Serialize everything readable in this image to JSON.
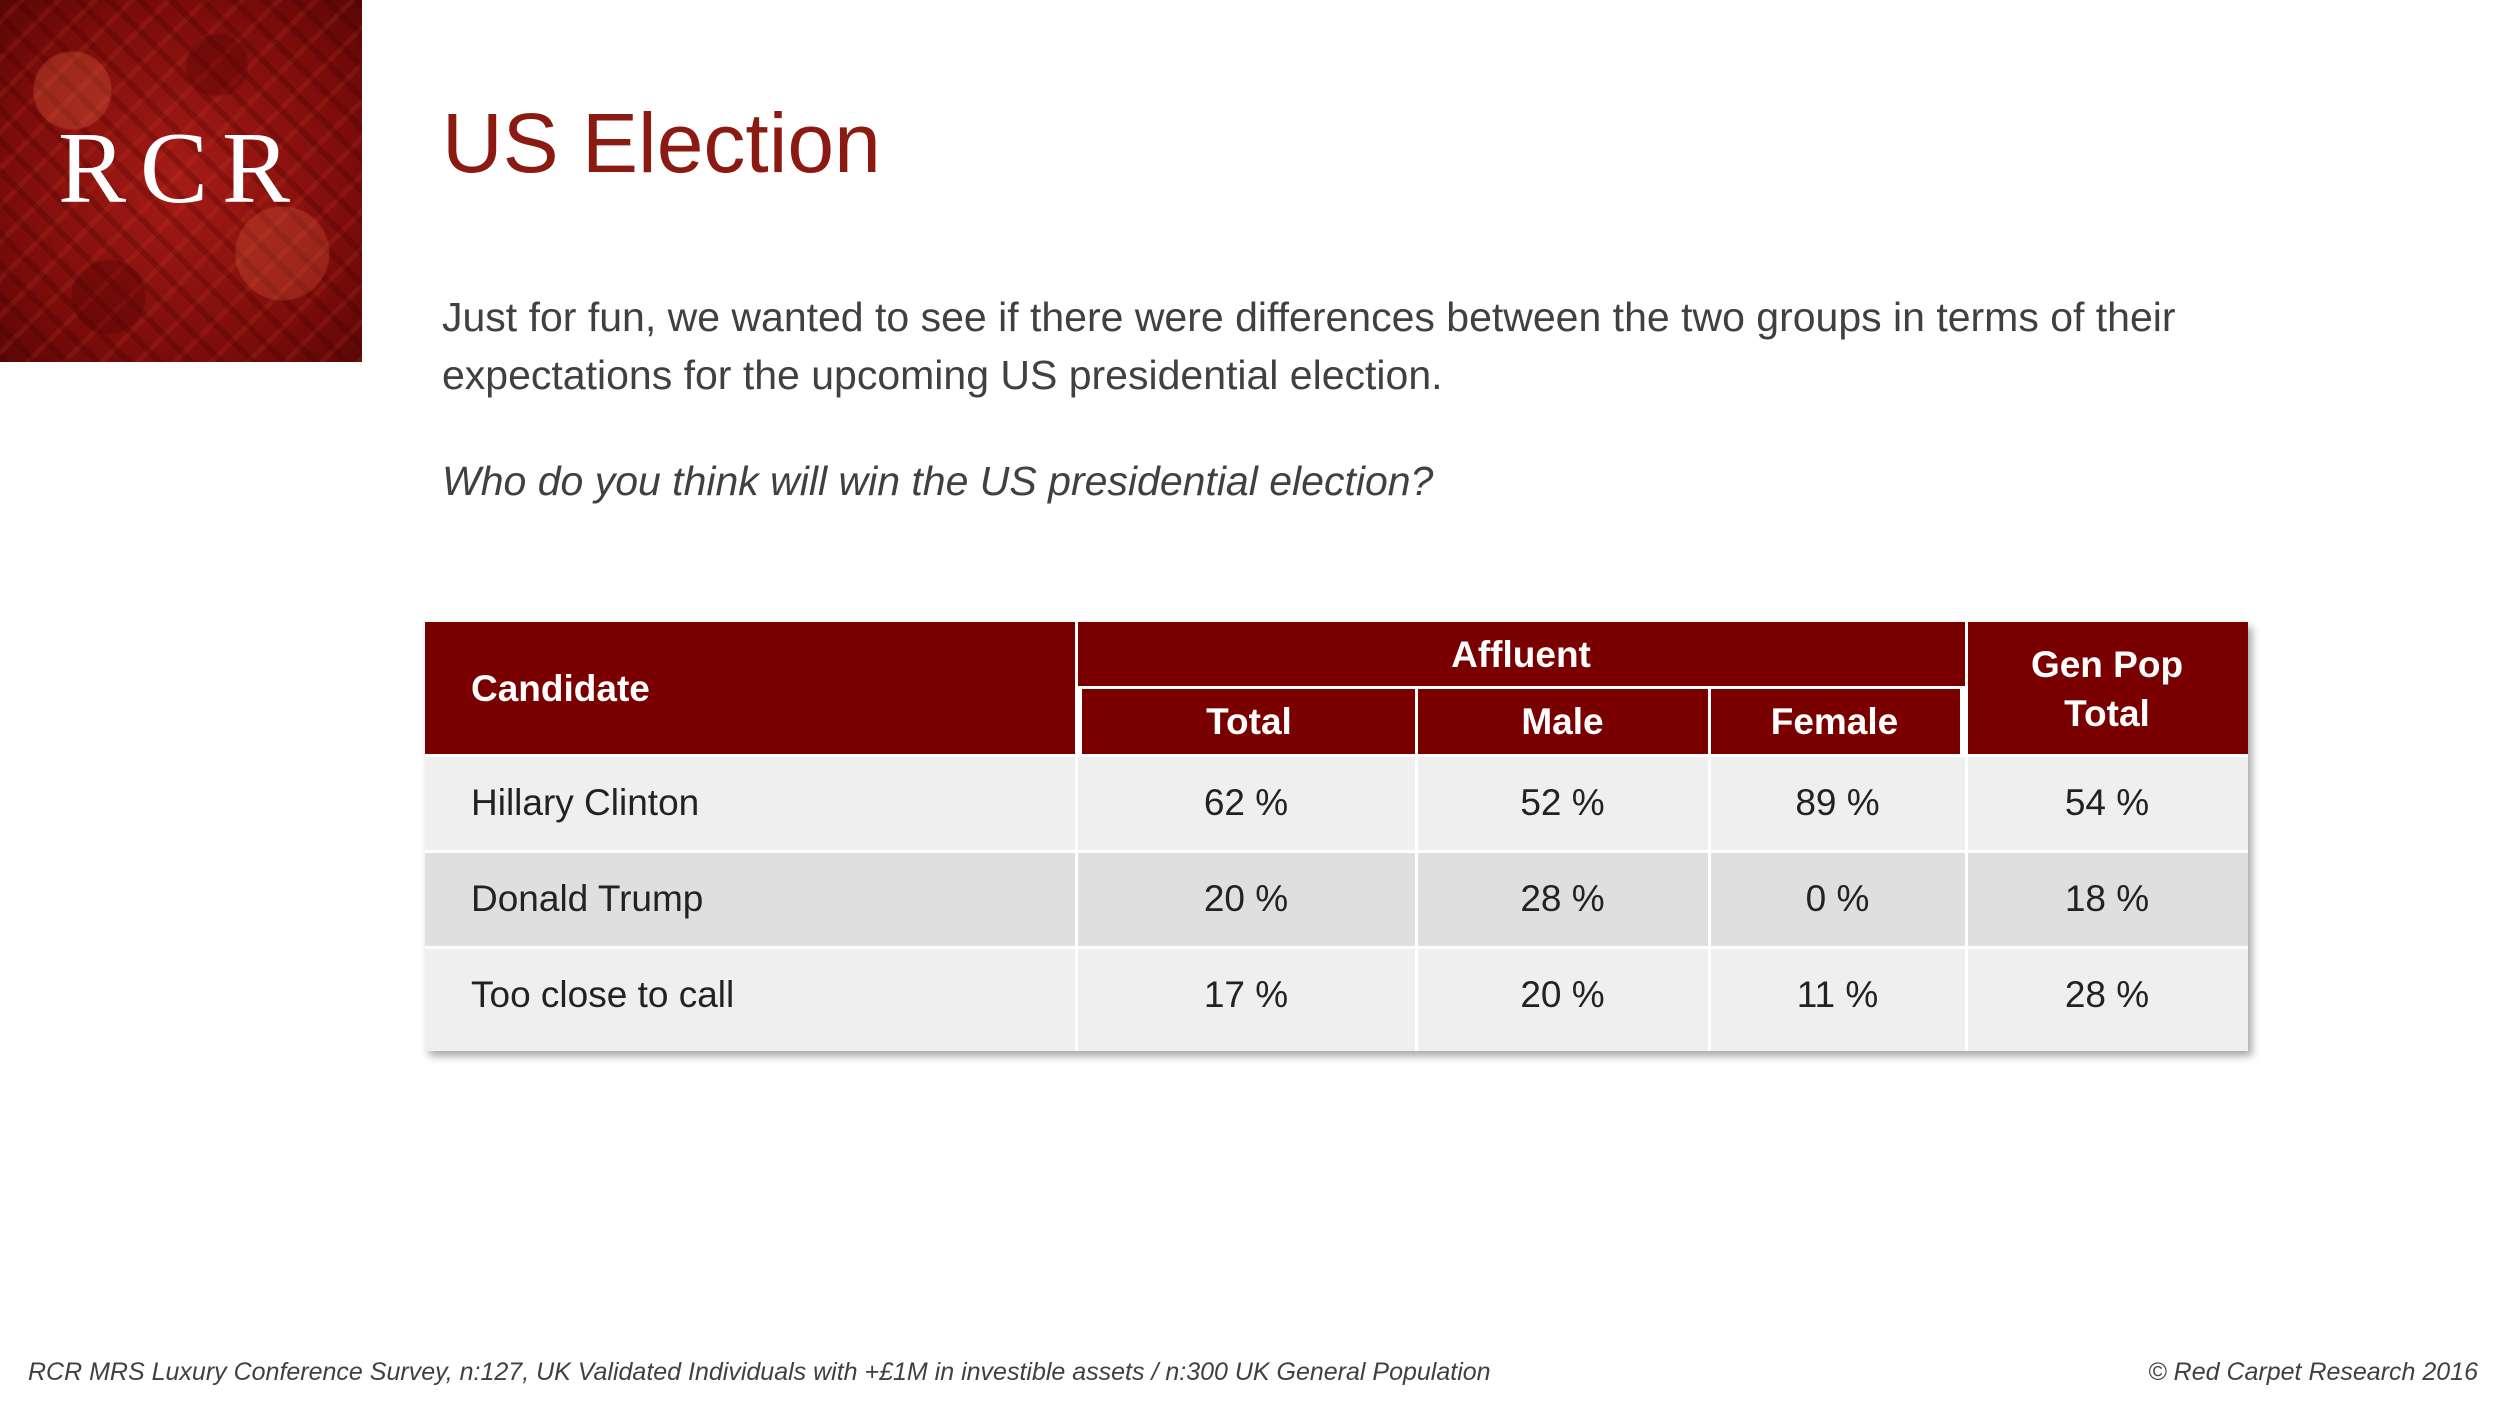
{
  "logo": {
    "text": "RCR"
  },
  "slide": {
    "title": "US Election",
    "intro": "Just for fun, we wanted to see if there were differences between the two groups in terms of their expectations for the upcoming US presidential election.",
    "question": "Who do you think will win the US presidential election?"
  },
  "table": {
    "header": {
      "candidate": "Candidate",
      "affluent": "Affluent",
      "total": "Total",
      "male": "Male",
      "female": "Female",
      "genpop_line1": "Gen Pop",
      "genpop_line2": "Total"
    },
    "rows": [
      {
        "name": "Hillary Clinton",
        "total": "62 %",
        "male": "52 %",
        "female": "89 %",
        "genpop": "54 %"
      },
      {
        "name": "Donald Trump",
        "total": "20 %",
        "male": "28 %",
        "female": "0 %",
        "genpop": "18 %"
      },
      {
        "name": "Too close to call",
        "total": "17 %",
        "male": "20 %",
        "female": "11 %",
        "genpop": "28 %"
      }
    ]
  },
  "footer": {
    "source": "RCR MRS Luxury Conference Survey, n:127, UK Validated Individuals with +£1M in investible assets / n:300 UK General Population",
    "copyright": "© Red Carpet Research 2016"
  },
  "colors": {
    "accent": "#7a0000",
    "title": "#8b1a12",
    "row_light": "#efefef",
    "row_dark": "#dfdfdf"
  }
}
